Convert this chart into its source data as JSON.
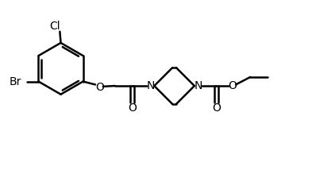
{
  "bg_color": "#ffffff",
  "line_color": "#000000",
  "line_width": 1.8,
  "font_size": 10,
  "label_Cl": "Cl",
  "label_Br": "Br",
  "label_O1": "O",
  "label_O2": "O",
  "label_O3": "O",
  "label_N1": "N",
  "label_N2": "N",
  "label_eth": "O",
  "figsize": [
    3.98,
    2.24
  ],
  "dpi": 100
}
